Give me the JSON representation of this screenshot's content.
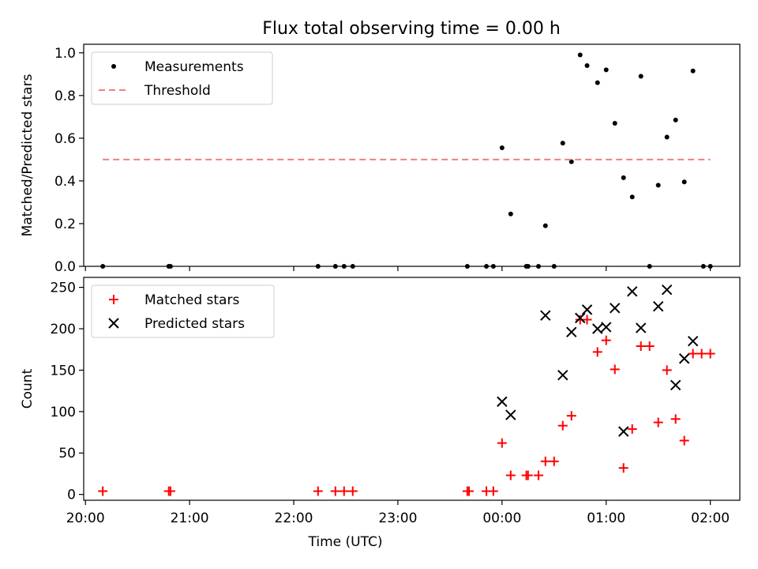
{
  "title": "Flux total observing time = 0.00 h",
  "chart_data": [
    {
      "type": "scatter",
      "panel": "top",
      "ylabel": "Matched/Predicted stars",
      "ylim": [
        0,
        1.04
      ],
      "yticks": [
        0.0,
        0.2,
        0.4,
        0.6,
        0.8,
        1.0
      ],
      "ytick_labels": [
        "0.0",
        "0.2",
        "0.4",
        "0.6",
        "0.8",
        "1.0"
      ],
      "xlim": [
        "19:59",
        "02:17"
      ],
      "legend": "top-left",
      "legend_entries": [
        "Measurements",
        "Threshold"
      ],
      "series": [
        {
          "name": "Measurements",
          "marker": "dot",
          "color": "#000000",
          "x": [
            "20:10",
            "20:48",
            "20:49",
            "22:14",
            "22:24",
            "22:29",
            "22:34",
            "23:40",
            "23:51",
            "23:55",
            "00:00",
            "00:05",
            "00:14",
            "00:15",
            "00:21",
            "00:25",
            "00:30",
            "00:35",
            "00:40",
            "00:45",
            "00:49",
            "00:55",
            "01:00",
            "01:05",
            "01:10",
            "01:15",
            "01:20",
            "01:25",
            "01:30",
            "01:35",
            "01:40",
            "01:45",
            "01:50",
            "01:56",
            "02:00"
          ],
          "y": [
            0.0,
            0.0,
            0.0,
            0.0,
            0.0,
            0.0,
            0.0,
            0.0,
            0.0,
            0.0,
            0.555,
            0.245,
            0.0,
            0.0,
            0.0,
            0.19,
            0.0,
            0.577,
            0.49,
            0.99,
            0.94,
            0.86,
            0.92,
            0.67,
            0.415,
            0.325,
            0.89,
            0.0,
            0.38,
            0.605,
            0.685,
            0.395,
            0.915,
            0.0,
            0.0
          ]
        },
        {
          "name": "Threshold",
          "style": "dashed",
          "color": "#f08080",
          "x": [
            "20:10",
            "02:00"
          ],
          "y": [
            0.5,
            0.5
          ]
        }
      ]
    },
    {
      "type": "scatter",
      "panel": "bottom",
      "ylabel": "Count",
      "xlabel": "Time (UTC)",
      "ylim": [
        -7,
        262
      ],
      "yticks": [
        0,
        50,
        100,
        150,
        200,
        250
      ],
      "ytick_labels": [
        "0",
        "50",
        "100",
        "150",
        "200",
        "250"
      ],
      "xlim": [
        "19:59",
        "02:17"
      ],
      "xticks": [
        "20:00",
        "21:00",
        "22:00",
        "23:00",
        "00:00",
        "01:00",
        "02:00"
      ],
      "xtick_labels": [
        "20:00",
        "21:00",
        "22:00",
        "23:00",
        "00:00",
        "01:00",
        "02:00"
      ],
      "legend": "top-left",
      "legend_entries": [
        "Matched stars",
        "Predicted stars"
      ],
      "series": [
        {
          "name": "Matched stars",
          "marker": "plus",
          "color": "#ff0000",
          "x": [
            "20:10",
            "20:48",
            "20:49",
            "22:14",
            "22:24",
            "22:29",
            "22:34",
            "23:40",
            "23:41",
            "23:51",
            "23:55",
            "00:00",
            "00:05",
            "00:14",
            "00:15",
            "00:21",
            "00:25",
            "00:30",
            "00:35",
            "00:40",
            "00:45",
            "00:49",
            "00:55",
            "01:00",
            "01:05",
            "01:10",
            "01:15",
            "01:20",
            "01:25",
            "01:30",
            "01:35",
            "01:40",
            "01:45",
            "01:50",
            "01:55",
            "02:00"
          ],
          "y": [
            4,
            4,
            4,
            4,
            4,
            4,
            4,
            4,
            4,
            4,
            4,
            62,
            23,
            23,
            23,
            23,
            40,
            40,
            83,
            95,
            211,
            211,
            172,
            186,
            151,
            32,
            79,
            179,
            179,
            87,
            150,
            91,
            65,
            170,
            170,
            170
          ]
        },
        {
          "name": "Predicted stars",
          "marker": "x",
          "color": "#000000",
          "x": [
            "00:00",
            "00:05",
            "00:25",
            "00:35",
            "00:40",
            "00:45",
            "00:49",
            "00:55",
            "01:00",
            "01:05",
            "01:10",
            "01:15",
            "01:20",
            "01:30",
            "01:35",
            "01:40",
            "01:45",
            "01:50"
          ],
          "y": [
            112,
            96,
            216,
            144,
            196,
            213,
            223,
            200,
            202,
            225,
            76,
            245,
            201,
            227,
            247,
            132,
            164,
            185
          ]
        }
      ]
    }
  ]
}
